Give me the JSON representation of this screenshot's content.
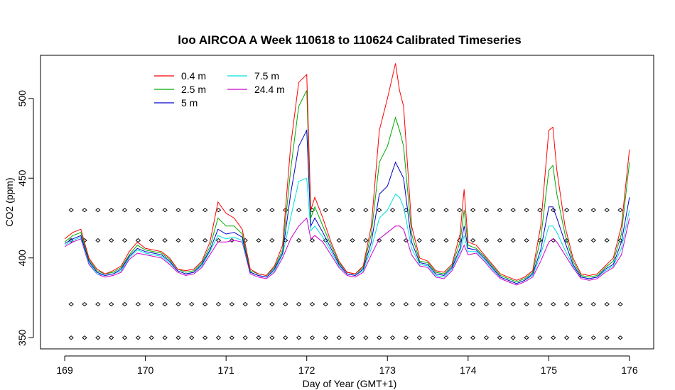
{
  "chart_data": {
    "type": "line",
    "title": "loo AIRCOA A  Week 110618 to 110624  Calibrated Timeseries",
    "xlabel": "Day of Year (GMT+1)",
    "ylabel": "CO2 (ppm)",
    "xlim": [
      168.7,
      176.3
    ],
    "ylim": [
      343,
      527
    ],
    "x_ticks": [
      169,
      170,
      171,
      172,
      173,
      174,
      175,
      176
    ],
    "y_ticks": [
      350,
      400,
      450,
      500
    ],
    "grid": false,
    "legend_position": "top-left",
    "marker_rows": [
      430,
      411,
      371,
      350
    ],
    "series": [
      {
        "name": "0.4 m",
        "color": "#ff0000",
        "x": [
          169.0,
          169.1,
          169.2,
          169.3,
          169.4,
          169.5,
          169.6,
          169.7,
          169.8,
          169.9,
          170.0,
          170.1,
          170.2,
          170.3,
          170.4,
          170.5,
          170.6,
          170.7,
          170.8,
          170.9,
          171.0,
          171.1,
          171.2,
          171.3,
          171.4,
          171.5,
          171.6,
          171.7,
          171.8,
          171.9,
          172.0,
          172.05,
          172.1,
          172.2,
          172.3,
          172.4,
          172.5,
          172.6,
          172.7,
          172.8,
          172.9,
          173.0,
          173.1,
          173.15,
          173.2,
          173.3,
          173.4,
          173.5,
          173.6,
          173.7,
          173.8,
          173.9,
          173.95,
          174.0,
          174.1,
          174.2,
          174.3,
          174.4,
          174.5,
          174.6,
          174.7,
          174.8,
          174.9,
          175.0,
          175.05,
          175.1,
          175.2,
          175.3,
          175.4,
          175.5,
          175.6,
          175.7,
          175.8,
          175.9,
          176.0
        ],
        "y": [
          412,
          416,
          418,
          400,
          393,
          390,
          392,
          395,
          404,
          410,
          406,
          405,
          404,
          400,
          393,
          392,
          393,
          398,
          410,
          435,
          428,
          425,
          418,
          393,
          390,
          389,
          395,
          408,
          470,
          510,
          515,
          430,
          438,
          425,
          410,
          398,
          391,
          390,
          395,
          420,
          480,
          500,
          522,
          505,
          495,
          420,
          400,
          398,
          392,
          391,
          396,
          415,
          443,
          410,
          408,
          402,
          396,
          390,
          388,
          386,
          388,
          392,
          420,
          480,
          482,
          455,
          420,
          400,
          390,
          389,
          390,
          395,
          400,
          420,
          468
        ]
      },
      {
        "name": "2.5 m",
        "color": "#00aa00",
        "x": [
          169.0,
          169.1,
          169.2,
          169.3,
          169.4,
          169.5,
          169.6,
          169.7,
          169.8,
          169.9,
          170.0,
          170.1,
          170.2,
          170.3,
          170.4,
          170.5,
          170.6,
          170.7,
          170.8,
          170.9,
          171.0,
          171.1,
          171.2,
          171.3,
          171.4,
          171.5,
          171.6,
          171.7,
          171.8,
          171.9,
          172.0,
          172.05,
          172.1,
          172.2,
          172.3,
          172.4,
          172.5,
          172.6,
          172.7,
          172.8,
          172.9,
          173.0,
          173.1,
          173.15,
          173.2,
          173.3,
          173.4,
          173.5,
          173.6,
          173.7,
          173.8,
          173.9,
          173.95,
          174.0,
          174.1,
          174.2,
          174.3,
          174.4,
          174.5,
          174.6,
          174.7,
          174.8,
          174.9,
          175.0,
          175.05,
          175.1,
          175.2,
          175.3,
          175.4,
          175.5,
          175.6,
          175.7,
          175.8,
          175.9,
          176.0
        ],
        "y": [
          410,
          414,
          416,
          399,
          392,
          390,
          391,
          394,
          402,
          408,
          405,
          404,
          403,
          399,
          393,
          391,
          392,
          397,
          407,
          425,
          420,
          420,
          415,
          392,
          390,
          389,
          394,
          405,
          455,
          495,
          505,
          425,
          432,
          420,
          408,
          397,
          391,
          390,
          394,
          415,
          460,
          470,
          488,
          480,
          470,
          415,
          398,
          397,
          391,
          390,
          395,
          410,
          430,
          408,
          406,
          401,
          395,
          389,
          387,
          385,
          387,
          391,
          412,
          455,
          458,
          440,
          415,
          398,
          389,
          388,
          389,
          394,
          398,
          415,
          460
        ]
      },
      {
        "name": "5 m",
        "color": "#0000cc",
        "x": [
          169.0,
          169.1,
          169.2,
          169.3,
          169.4,
          169.5,
          169.6,
          169.7,
          169.8,
          169.9,
          170.0,
          170.1,
          170.2,
          170.3,
          170.4,
          170.5,
          170.6,
          170.7,
          170.8,
          170.9,
          171.0,
          171.1,
          171.2,
          171.3,
          171.4,
          171.5,
          171.6,
          171.7,
          171.8,
          171.9,
          172.0,
          172.05,
          172.1,
          172.2,
          172.3,
          172.4,
          172.5,
          172.6,
          172.7,
          172.8,
          172.9,
          173.0,
          173.1,
          173.15,
          173.2,
          173.3,
          173.4,
          173.5,
          173.6,
          173.7,
          173.8,
          173.9,
          173.95,
          174.0,
          174.1,
          174.2,
          174.3,
          174.4,
          174.5,
          174.6,
          174.7,
          174.8,
          174.9,
          175.0,
          175.05,
          175.1,
          175.2,
          175.3,
          175.4,
          175.5,
          175.6,
          175.7,
          175.8,
          175.9,
          176.0
        ],
        "y": [
          409,
          412,
          414,
          398,
          391,
          389,
          390,
          393,
          401,
          406,
          404,
          403,
          402,
          398,
          392,
          390,
          391,
          396,
          405,
          418,
          415,
          416,
          413,
          391,
          389,
          388,
          393,
          403,
          440,
          470,
          480,
          420,
          425,
          416,
          406,
          396,
          390,
          389,
          393,
          410,
          440,
          445,
          460,
          455,
          450,
          410,
          397,
          396,
          390,
          389,
          394,
          406,
          420,
          406,
          405,
          400,
          394,
          388,
          386,
          384,
          386,
          390,
          405,
          432,
          432,
          425,
          410,
          396,
          388,
          387,
          388,
          393,
          396,
          410,
          438
        ]
      },
      {
        "name": "7.5 m",
        "color": "#00e0e0",
        "x": [
          169.0,
          169.1,
          169.2,
          169.3,
          169.4,
          169.5,
          169.6,
          169.7,
          169.8,
          169.9,
          170.0,
          170.1,
          170.2,
          170.3,
          170.4,
          170.5,
          170.6,
          170.7,
          170.8,
          170.9,
          171.0,
          171.1,
          171.2,
          171.3,
          171.4,
          171.5,
          171.6,
          171.7,
          171.8,
          171.9,
          172.0,
          172.05,
          172.1,
          172.2,
          172.3,
          172.4,
          172.5,
          172.6,
          172.7,
          172.8,
          172.9,
          173.0,
          173.1,
          173.15,
          173.2,
          173.3,
          173.4,
          173.5,
          173.6,
          173.7,
          173.8,
          173.9,
          173.95,
          174.0,
          174.1,
          174.2,
          174.3,
          174.4,
          174.5,
          174.6,
          174.7,
          174.8,
          174.9,
          175.0,
          175.05,
          175.1,
          175.2,
          175.3,
          175.4,
          175.5,
          175.6,
          175.7,
          175.8,
          175.9,
          176.0
        ],
        "y": [
          408,
          411,
          413,
          397,
          390,
          389,
          390,
          392,
          400,
          405,
          403,
          402,
          401,
          397,
          392,
          390,
          391,
          395,
          404,
          414,
          412,
          413,
          411,
          391,
          389,
          388,
          392,
          402,
          425,
          448,
          450,
          417,
          420,
          413,
          404,
          395,
          390,
          389,
          392,
          406,
          425,
          430,
          440,
          438,
          432,
          406,
          396,
          395,
          389,
          388,
          393,
          404,
          414,
          404,
          404,
          399,
          393,
          388,
          386,
          384,
          386,
          389,
          402,
          420,
          420,
          416,
          405,
          395,
          388,
          387,
          388,
          392,
          395,
          406,
          430
        ]
      },
      {
        "name": "24.4 m",
        "color": "#cc00cc",
        "x": [
          169.0,
          169.1,
          169.2,
          169.3,
          169.4,
          169.5,
          169.6,
          169.7,
          169.8,
          169.9,
          170.0,
          170.1,
          170.2,
          170.3,
          170.4,
          170.5,
          170.6,
          170.7,
          170.8,
          170.9,
          171.0,
          171.1,
          171.2,
          171.3,
          171.4,
          171.5,
          171.6,
          171.7,
          171.8,
          171.9,
          172.0,
          172.05,
          172.1,
          172.2,
          172.3,
          172.4,
          172.5,
          172.6,
          172.7,
          172.8,
          172.9,
          173.0,
          173.1,
          173.15,
          173.2,
          173.3,
          173.4,
          173.5,
          173.6,
          173.7,
          173.8,
          173.9,
          173.95,
          174.0,
          174.1,
          174.2,
          174.3,
          174.4,
          174.5,
          174.6,
          174.7,
          174.8,
          174.9,
          175.0,
          175.05,
          175.1,
          175.2,
          175.3,
          175.4,
          175.5,
          175.6,
          175.7,
          175.8,
          175.9,
          176.0
        ],
        "y": [
          407,
          410,
          412,
          396,
          390,
          388,
          389,
          391,
          399,
          403,
          402,
          401,
          400,
          396,
          391,
          389,
          390,
          394,
          402,
          410,
          410,
          411,
          410,
          390,
          388,
          387,
          391,
          400,
          412,
          420,
          425,
          412,
          414,
          410,
          402,
          394,
          389,
          388,
          391,
          402,
          412,
          416,
          420,
          420,
          418,
          402,
          395,
          394,
          388,
          387,
          392,
          402,
          408,
          402,
          403,
          398,
          392,
          387,
          385,
          383,
          385,
          388,
          398,
          410,
          412,
          410,
          402,
          394,
          387,
          386,
          387,
          391,
          394,
          402,
          425
        ]
      }
    ]
  }
}
